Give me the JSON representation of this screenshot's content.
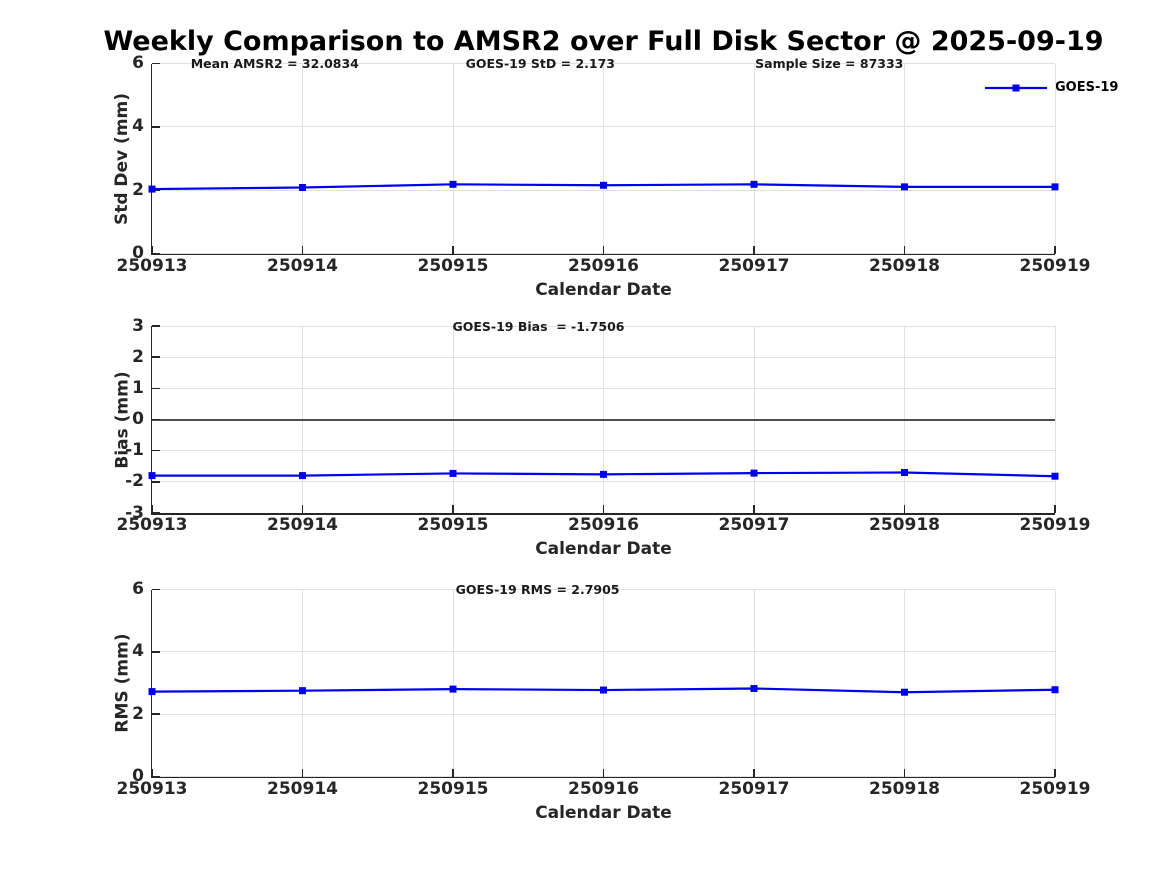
{
  "title": "Weekly Comparison to AMSR2 over Full Disk Sector @ 2025-09-19",
  "legend": {
    "label": "GOES-19"
  },
  "colors": {
    "line": "#0000ee",
    "marker": "#0000ee",
    "grid": "#e0e0e0",
    "axis": "#262626",
    "zero_line": "#4d4d4d",
    "title": "#000000",
    "background": "#ffffff"
  },
  "chart_data": [
    {
      "type": "line",
      "id": "std-dev",
      "categories": [
        "250913",
        "250914",
        "250915",
        "250916",
        "250917",
        "250918",
        "250919"
      ],
      "series": [
        {
          "name": "GOES-19",
          "values": [
            2.05,
            2.1,
            2.2,
            2.17,
            2.2,
            2.12,
            2.12
          ]
        }
      ],
      "annotations": [
        "Mean AMSR2 = 32.0834",
        "GOES-19 StD = 2.173",
        "Sample Size = 87333"
      ],
      "xlabel": "Calendar Date",
      "ylabel": "Std Dev (mm)",
      "ylim": [
        0,
        6
      ],
      "yticks": [
        0,
        2,
        4,
        6
      ],
      "grid": true,
      "legend_entry": "GOES-19",
      "legend_position": "top-right",
      "zero_line": false
    },
    {
      "type": "line",
      "id": "bias",
      "categories": [
        "250913",
        "250914",
        "250915",
        "250916",
        "250917",
        "250918",
        "250919"
      ],
      "series": [
        {
          "name": "GOES-19",
          "values": [
            -1.8,
            -1.8,
            -1.73,
            -1.76,
            -1.72,
            -1.7,
            -1.82
          ]
        }
      ],
      "annotations": [
        "GOES-19 Bias  = -1.7506"
      ],
      "xlabel": "Calendar Date",
      "ylabel": "Bias (mm)",
      "ylim": [
        -3,
        3
      ],
      "yticks": [
        -3,
        -2,
        -1,
        0,
        1,
        2,
        3
      ],
      "grid": true,
      "zero_line": true
    },
    {
      "type": "line",
      "id": "rms",
      "categories": [
        "250913",
        "250914",
        "250915",
        "250916",
        "250917",
        "250918",
        "250919"
      ],
      "series": [
        {
          "name": "GOES-19",
          "values": [
            2.74,
            2.77,
            2.82,
            2.79,
            2.84,
            2.72,
            2.8
          ]
        }
      ],
      "annotations": [
        "GOES-19 RMS = 2.7905"
      ],
      "xlabel": "Calendar Date",
      "ylabel": "RMS (mm)",
      "ylim": [
        0,
        6
      ],
      "yticks": [
        0,
        2,
        4,
        6
      ],
      "grid": true,
      "zero_line": false
    }
  ]
}
